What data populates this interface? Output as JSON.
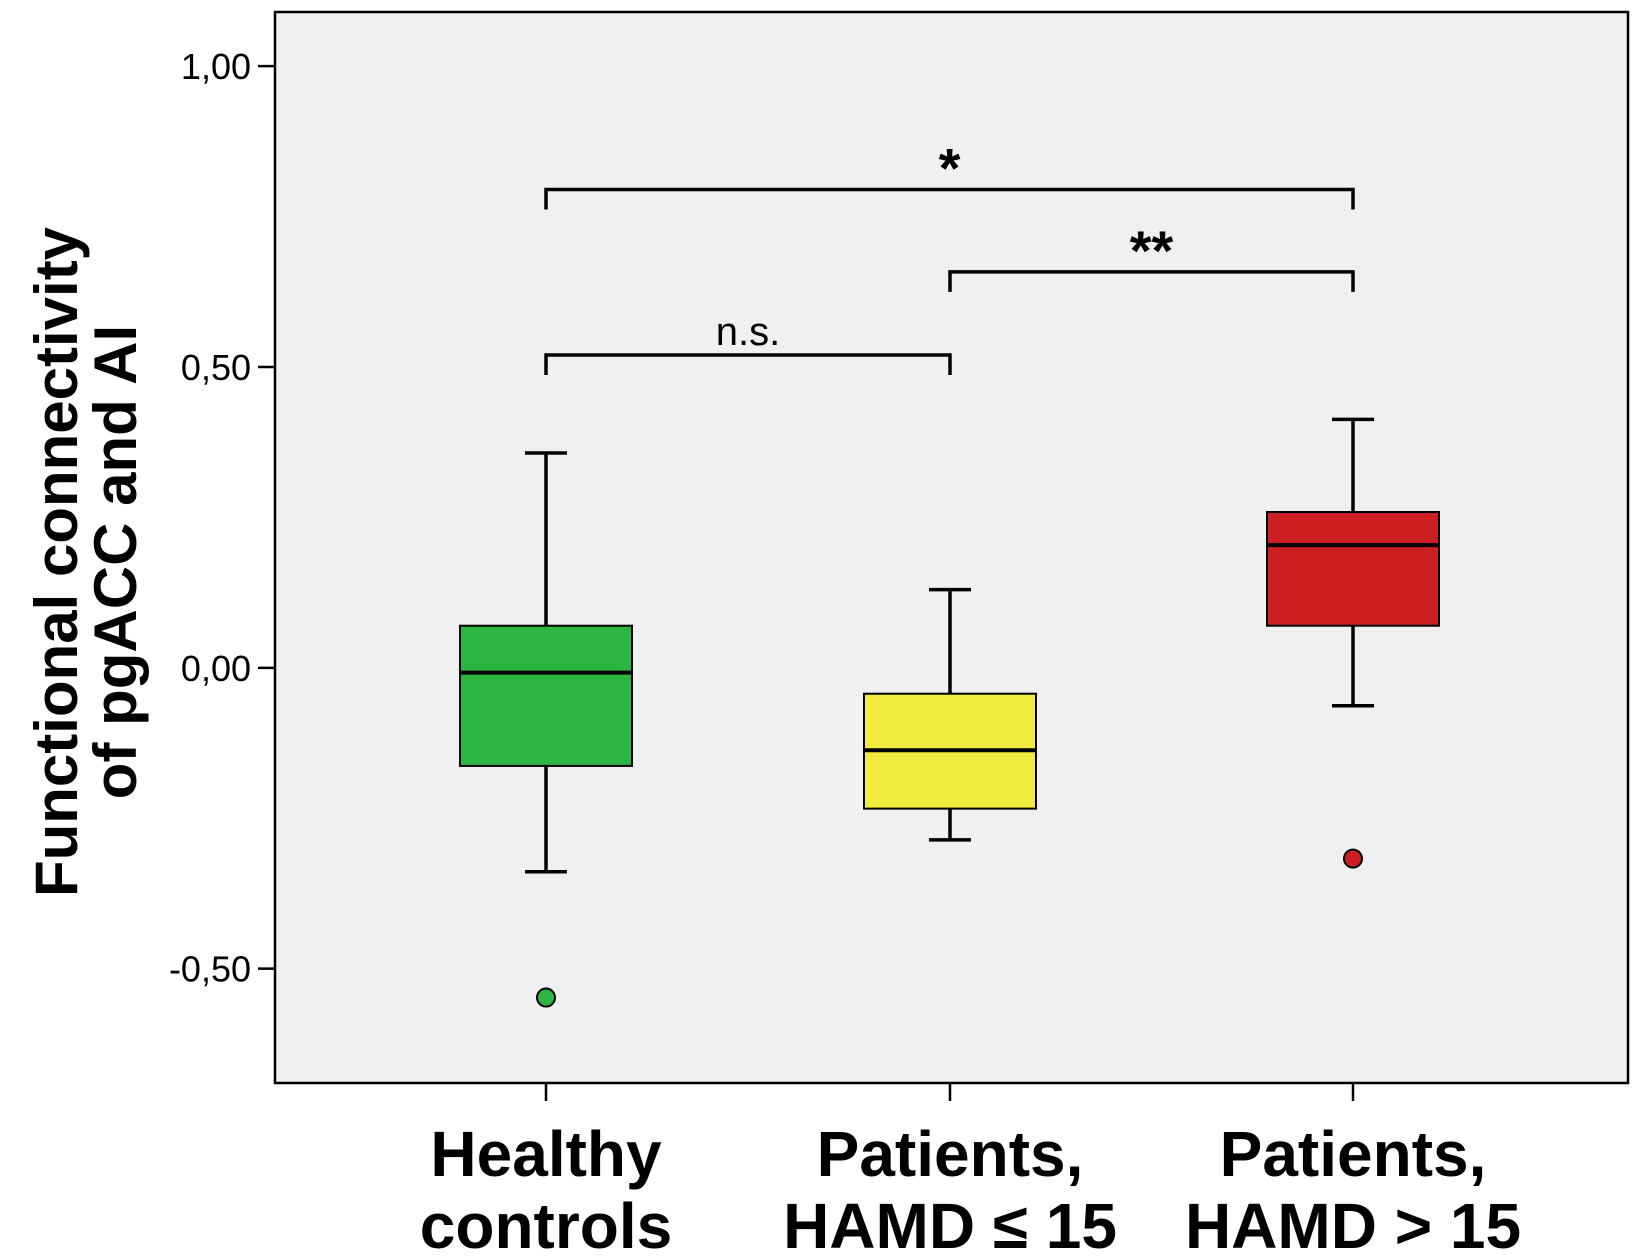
{
  "chart_data": {
    "type": "box",
    "ylabel_lines": [
      "Functional connectivity",
      "of pgACC and AI"
    ],
    "xlabel": "",
    "ylim": [
      -0.69,
      1.09
    ],
    "yticks": [
      1.0,
      0.5,
      0.0,
      -0.5
    ],
    "ytick_labels": [
      "1,00",
      "0,50",
      "0,00",
      "-0,50"
    ],
    "grid": false,
    "groups": [
      {
        "label_lines": [
          "Healthy",
          "controls"
        ],
        "color": "#2db543",
        "whisker_high": 0.357,
        "q3": 0.07,
        "median": -0.008,
        "q1": -0.163,
        "whisker_low": -0.339,
        "outliers": [
          -0.548
        ]
      },
      {
        "label_lines": [
          "Patients,",
          "HAMD ≤ 15"
        ],
        "color": "#f0ec3f",
        "whisker_high": 0.13,
        "q3": -0.043,
        "median": -0.137,
        "q1": -0.234,
        "whisker_low": -0.286,
        "outliers": []
      },
      {
        "label_lines": [
          "Patients,",
          "HAMD > 15"
        ],
        "color": "#cc1f22",
        "whisker_high": 0.413,
        "q3": 0.259,
        "median": 0.204,
        "q1": 0.07,
        "whisker_low": -0.063,
        "outliers": [
          -0.317
        ]
      }
    ],
    "comparisons": [
      {
        "from": 0,
        "to": 1,
        "label": "n.s.",
        "y": 0.52
      },
      {
        "from": 1,
        "to": 2,
        "label": "**",
        "y": 0.658
      },
      {
        "from": 0,
        "to": 2,
        "label": "*",
        "y": 0.795
      }
    ],
    "colors": {
      "plot_background": "#f0f0f0",
      "axis": "#000000"
    }
  }
}
